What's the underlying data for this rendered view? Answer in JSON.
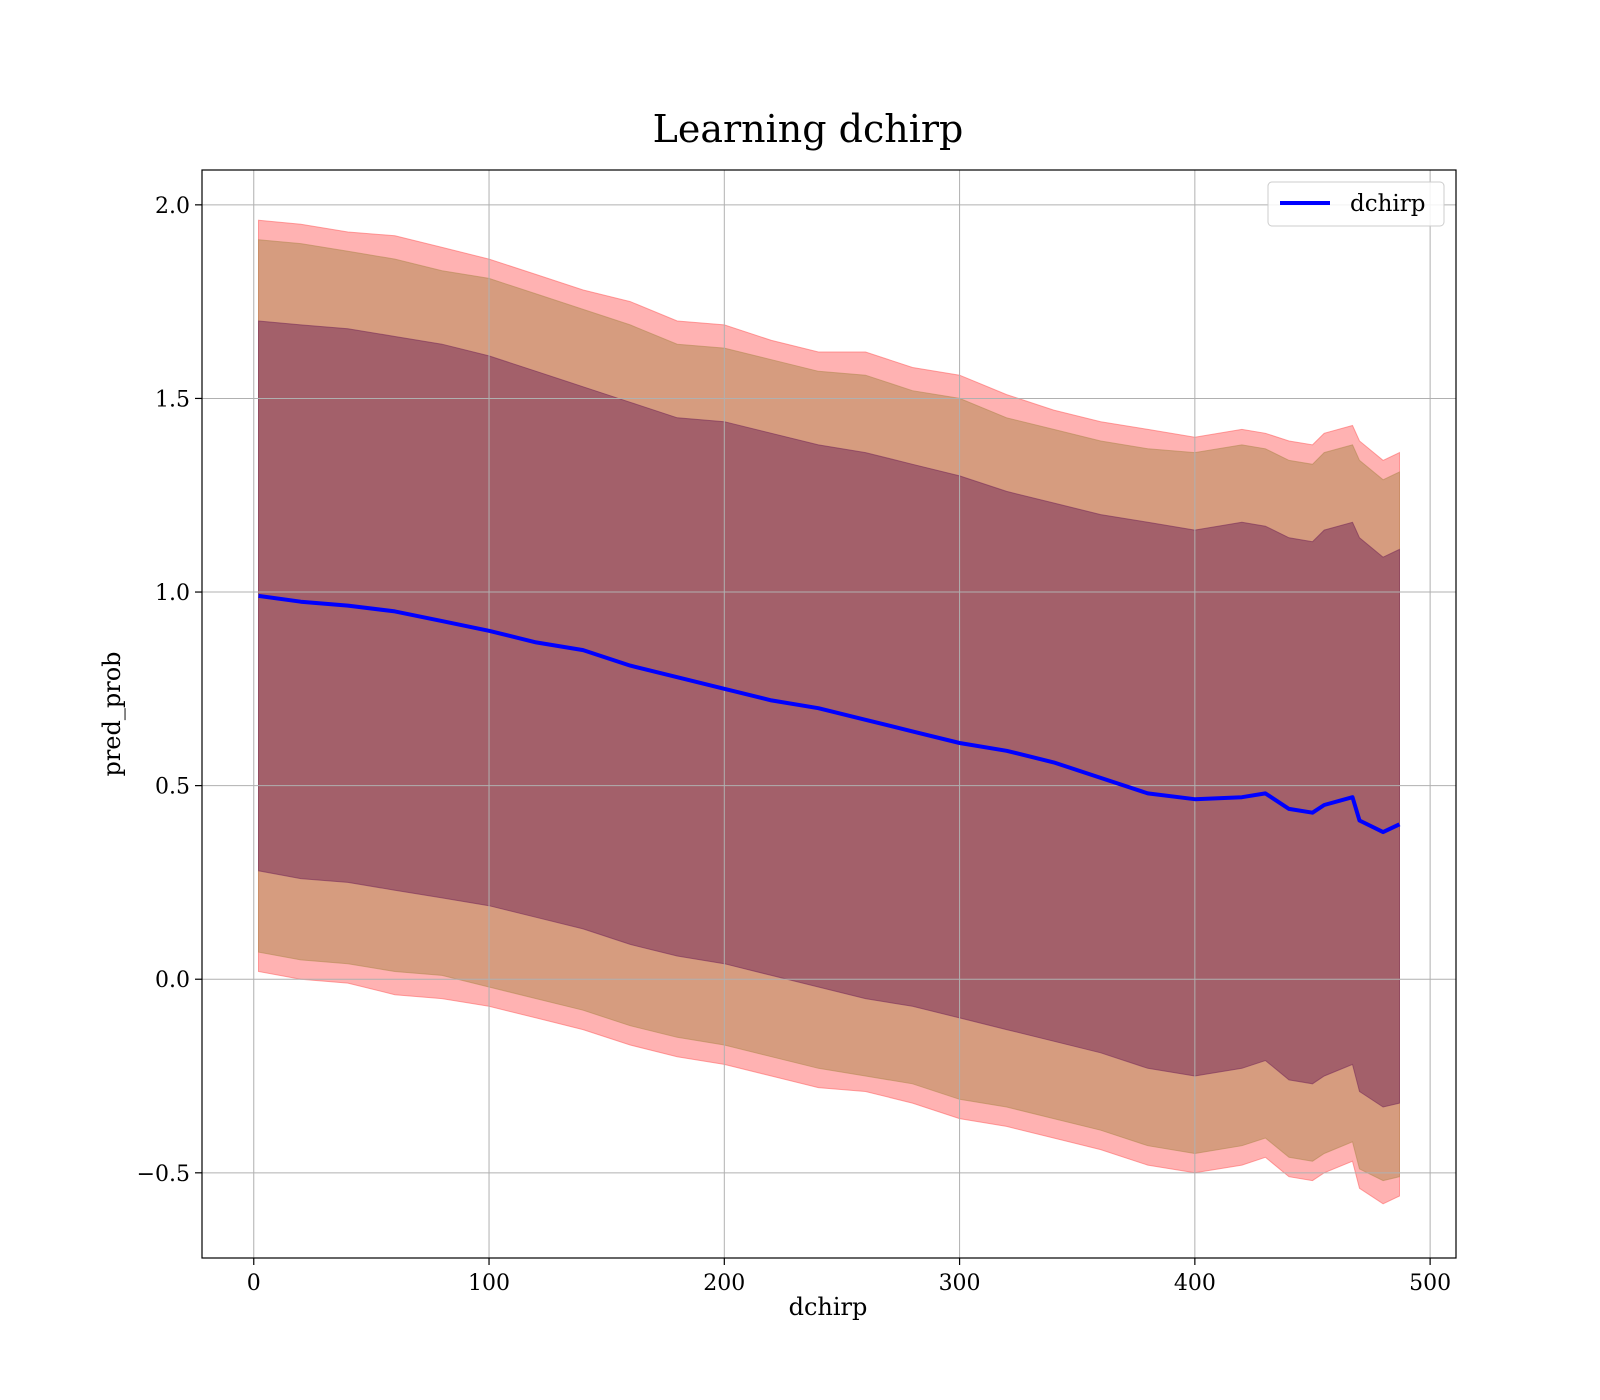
{
  "chart_data": {
    "type": "line",
    "title": "Learning dchirp",
    "xlabel": "dchirp",
    "ylabel": "pred_prob",
    "xlim": [
      -22,
      511
    ],
    "ylim": [
      -0.72,
      2.09
    ],
    "xticks": [
      0,
      100,
      200,
      300,
      400,
      500
    ],
    "yticks": [
      -0.5,
      0.0,
      0.5,
      1.0,
      1.5,
      2.0
    ],
    "ytick_labels": [
      "−0.5",
      "0.0",
      "0.5",
      "1.0",
      "1.5",
      "2.0"
    ],
    "grid": true,
    "legend": {
      "position": "top-right",
      "entries": [
        "dchirp"
      ]
    },
    "x": [
      2,
      20,
      40,
      60,
      80,
      100,
      120,
      140,
      160,
      180,
      200,
      220,
      240,
      260,
      280,
      300,
      320,
      340,
      360,
      380,
      400,
      420,
      430,
      440,
      450,
      455,
      467,
      470,
      480,
      487
    ],
    "series": [
      {
        "name": "dchirp",
        "color": "#0000ff",
        "values": [
          0.99,
          0.975,
          0.965,
          0.95,
          0.925,
          0.9,
          0.87,
          0.85,
          0.81,
          0.78,
          0.75,
          0.72,
          0.7,
          0.67,
          0.64,
          0.61,
          0.59,
          0.56,
          0.52,
          0.48,
          0.465,
          0.47,
          0.48,
          0.44,
          0.43,
          0.45,
          0.47,
          0.41,
          0.38,
          0.4
        ]
      }
    ],
    "bands": [
      {
        "label": "outer band",
        "color": "#ff6666",
        "upper": [
          1.96,
          1.95,
          1.93,
          1.92,
          1.89,
          1.86,
          1.82,
          1.78,
          1.75,
          1.7,
          1.69,
          1.65,
          1.62,
          1.62,
          1.58,
          1.56,
          1.51,
          1.47,
          1.44,
          1.42,
          1.4,
          1.42,
          1.41,
          1.39,
          1.38,
          1.41,
          1.43,
          1.39,
          1.34,
          1.36
        ],
        "lower": [
          0.02,
          0.0,
          -0.01,
          -0.04,
          -0.05,
          -0.07,
          -0.1,
          -0.13,
          -0.17,
          -0.2,
          -0.22,
          -0.25,
          -0.28,
          -0.29,
          -0.32,
          -0.36,
          -0.38,
          -0.41,
          -0.44,
          -0.48,
          -0.5,
          -0.48,
          -0.46,
          -0.51,
          -0.52,
          -0.5,
          -0.47,
          -0.54,
          -0.58,
          -0.56
        ]
      },
      {
        "label": "middle band",
        "color": "#b58a55",
        "upper": [
          1.91,
          1.9,
          1.88,
          1.86,
          1.83,
          1.81,
          1.77,
          1.73,
          1.69,
          1.64,
          1.63,
          1.6,
          1.57,
          1.56,
          1.52,
          1.5,
          1.45,
          1.42,
          1.39,
          1.37,
          1.36,
          1.38,
          1.37,
          1.34,
          1.33,
          1.36,
          1.38,
          1.34,
          1.29,
          1.31
        ],
        "lower": [
          0.07,
          0.05,
          0.04,
          0.02,
          0.01,
          -0.02,
          -0.05,
          -0.08,
          -0.12,
          -0.15,
          -0.17,
          -0.2,
          -0.23,
          -0.25,
          -0.27,
          -0.31,
          -0.33,
          -0.36,
          -0.39,
          -0.43,
          -0.45,
          -0.43,
          -0.41,
          -0.46,
          -0.47,
          -0.45,
          -0.42,
          -0.49,
          -0.52,
          -0.51
        ]
      },
      {
        "label": "inner band",
        "color": "#7a2f5a",
        "upper": [
          1.7,
          1.69,
          1.68,
          1.66,
          1.64,
          1.61,
          1.57,
          1.53,
          1.49,
          1.45,
          1.44,
          1.41,
          1.38,
          1.36,
          1.33,
          1.3,
          1.26,
          1.23,
          1.2,
          1.18,
          1.16,
          1.18,
          1.17,
          1.14,
          1.13,
          1.16,
          1.18,
          1.14,
          1.09,
          1.11
        ],
        "lower": [
          0.28,
          0.26,
          0.25,
          0.23,
          0.21,
          0.19,
          0.16,
          0.13,
          0.09,
          0.06,
          0.04,
          0.01,
          -0.02,
          -0.05,
          -0.07,
          -0.1,
          -0.13,
          -0.16,
          -0.19,
          -0.23,
          -0.25,
          -0.23,
          -0.21,
          -0.26,
          -0.27,
          -0.25,
          -0.22,
          -0.29,
          -0.33,
          -0.32
        ]
      }
    ]
  }
}
